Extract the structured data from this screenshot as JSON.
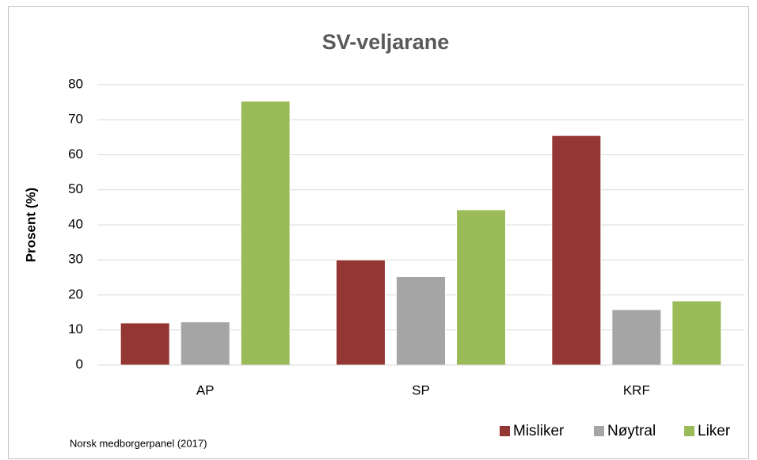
{
  "chart_data": {
    "type": "bar",
    "title": "SV-veljarane",
    "y_label": "Prosent (%)",
    "source": "Norsk medborgerpanel (2017)",
    "categories": [
      "AP",
      "SP",
      "KRF"
    ],
    "series": [
      {
        "name": "Misliker",
        "color": "#943634",
        "values": [
          12,
          30,
          65.5
        ]
      },
      {
        "name": "Nøytral",
        "color": "#a5a5a5",
        "values": [
          12.3,
          25.2,
          15.8
        ]
      },
      {
        "name": "Liker",
        "color": "#9bbb59",
        "values": [
          75.3,
          44.3,
          18.3
        ]
      }
    ],
    "ylim": [
      0,
      80
    ],
    "yticks": [
      0,
      10,
      20,
      30,
      40,
      50,
      60,
      70,
      80
    ],
    "grid": true,
    "legend": "bottom-right"
  }
}
